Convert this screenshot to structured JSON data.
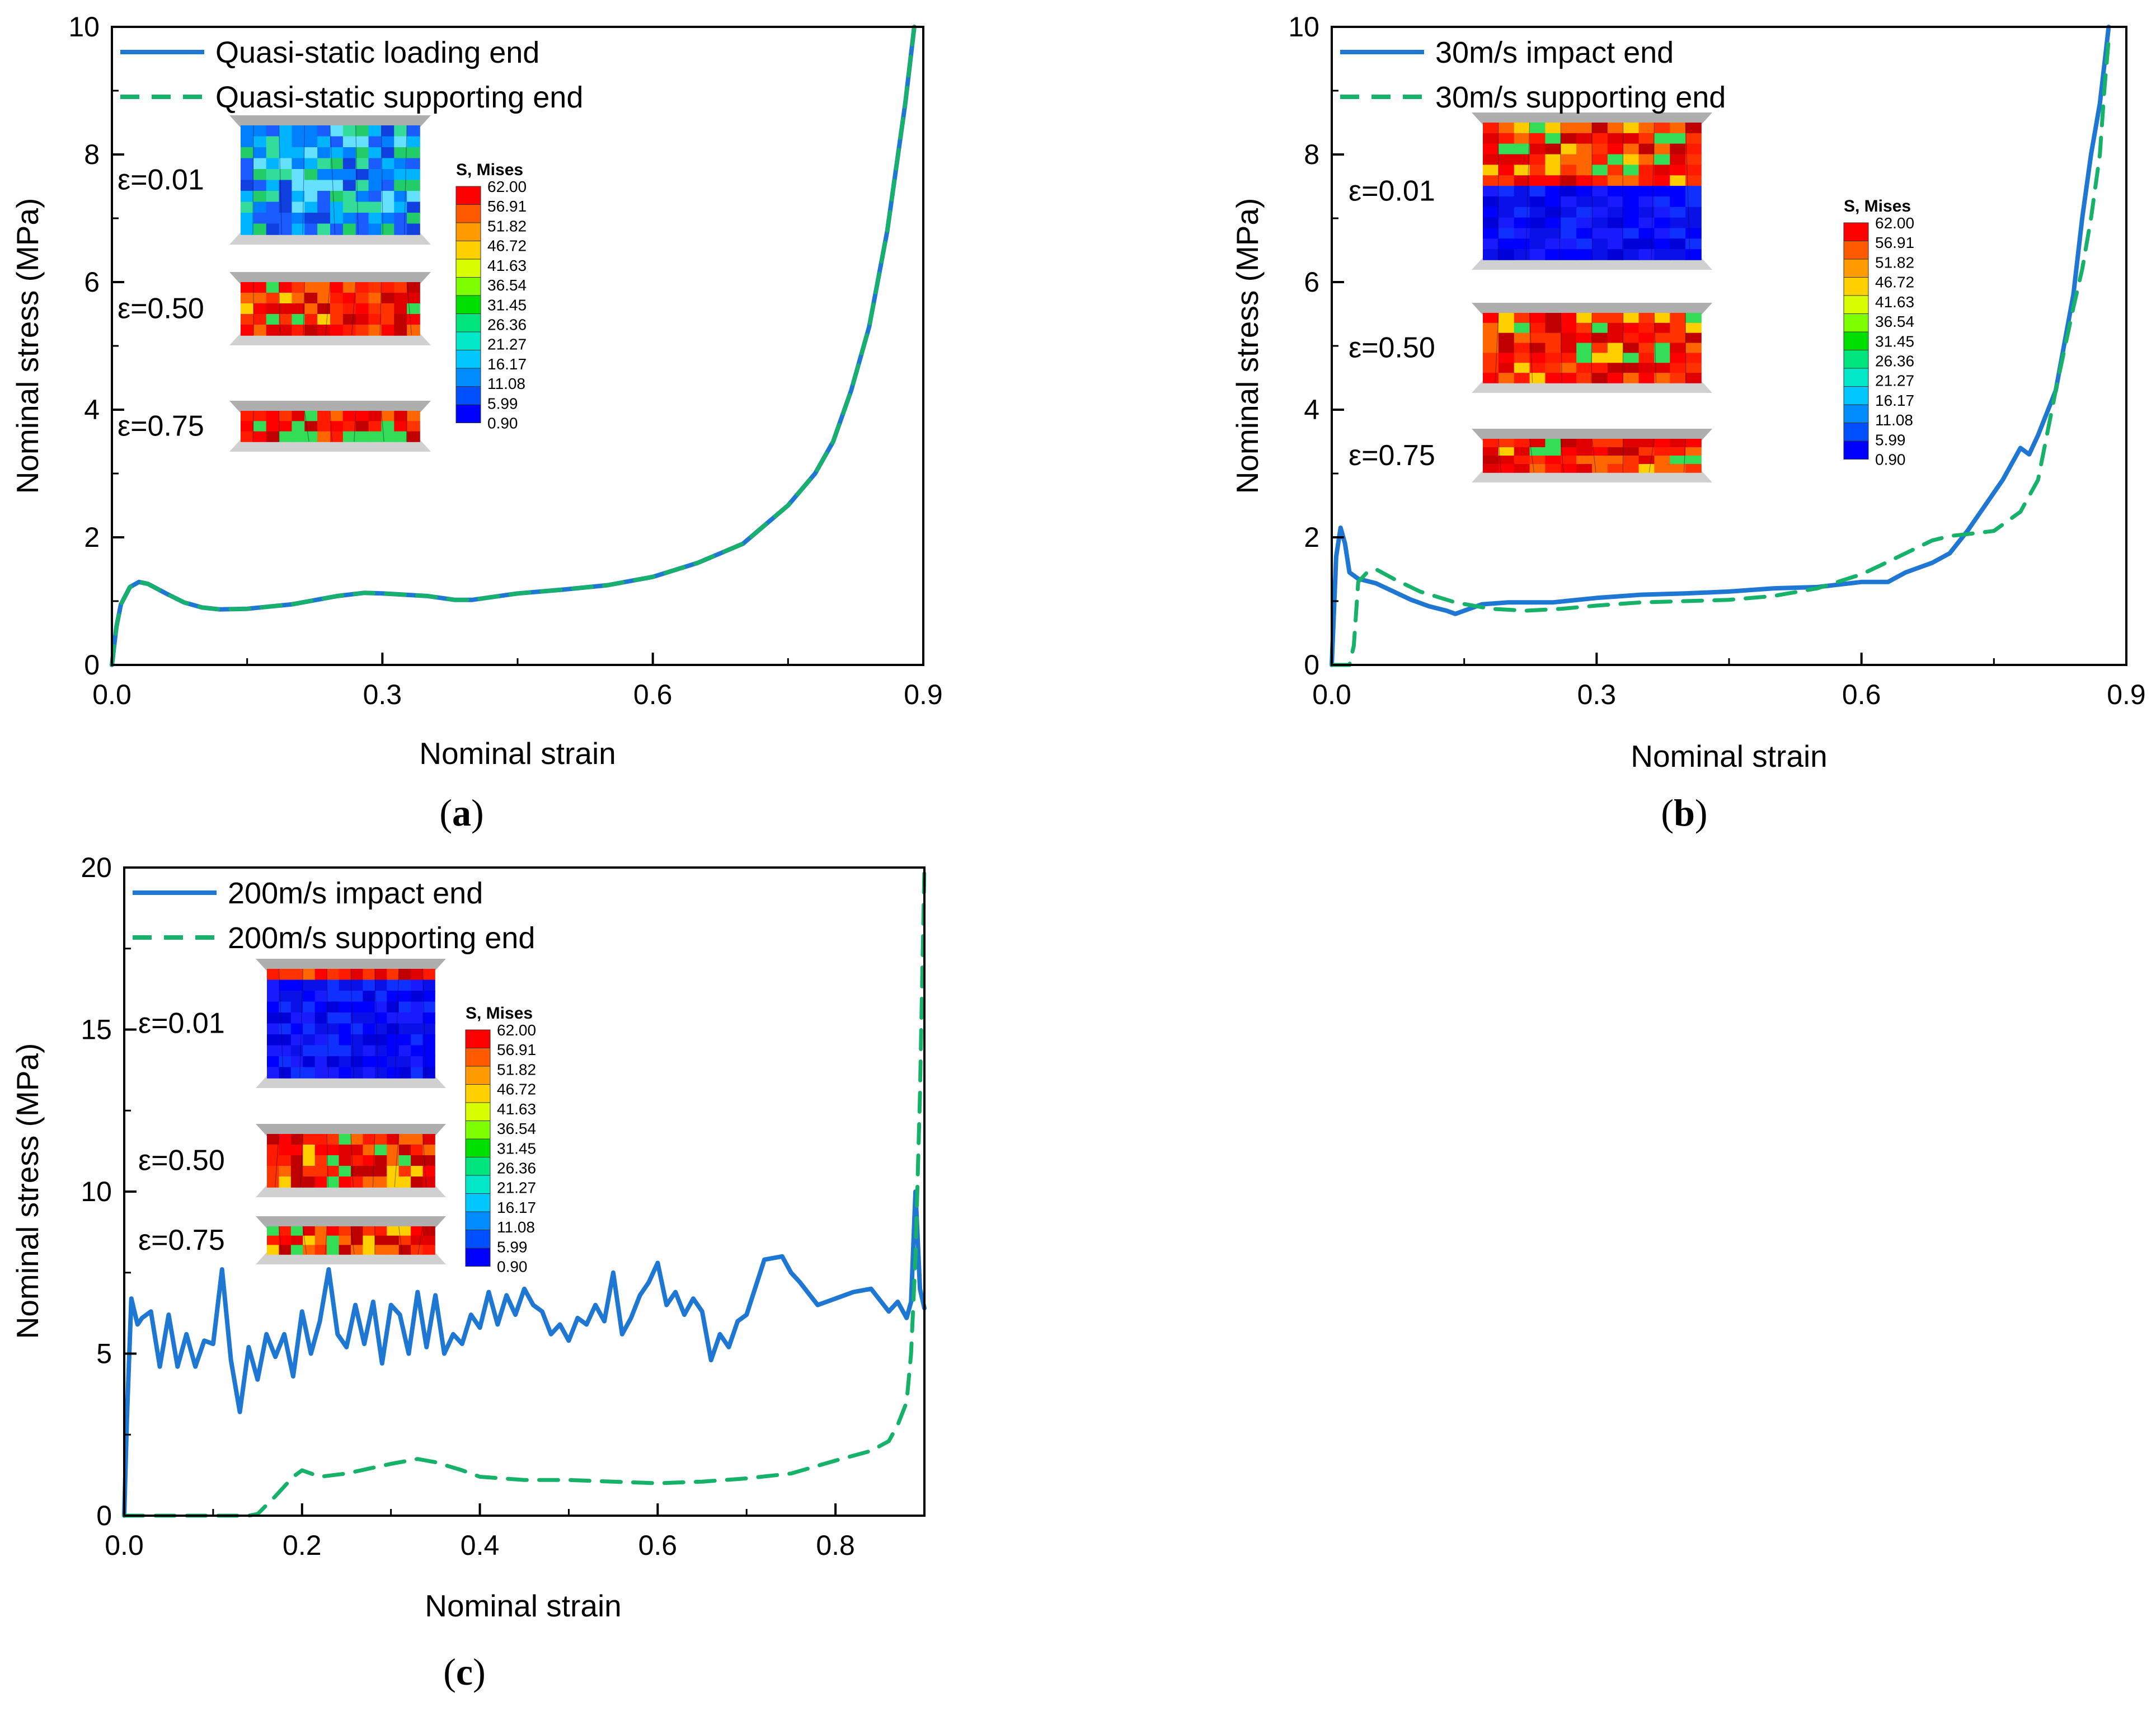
{
  "colors": {
    "impact": "#1f77d4",
    "support": "#17b26a",
    "axis": "#000000"
  },
  "colorbar": {
    "title": "S, Mises",
    "labels": [
      "62.00",
      "56.91",
      "51.82",
      "46.72",
      "41.63",
      "36.54",
      "31.45",
      "26.36",
      "21.27",
      "16.17",
      "11.08",
      "5.99",
      "0.90"
    ],
    "colors": [
      "#ff0000",
      "#ff5a00",
      "#ff9a00",
      "#ffd000",
      "#d8ff00",
      "#7dff00",
      "#00e000",
      "#00e47e",
      "#00e8c8",
      "#00c8ff",
      "#008cff",
      "#0050ff",
      "#0000ff"
    ]
  },
  "chart_data": [
    {
      "id": "a",
      "caption": "a",
      "type": "line",
      "xlabel": "Nominal strain",
      "ylabel": "Nominal stress (MPa)",
      "xlim": [
        0,
        0.9
      ],
      "ylim": [
        0,
        10
      ],
      "xticks": [
        "0.0",
        "0.3",
        "0.6",
        "0.9"
      ],
      "yticks": [
        "0",
        "2",
        "4",
        "6",
        "8",
        "10"
      ],
      "legend": "top-left",
      "insets": {
        "labels": [
          "ε=0.01",
          "ε=0.50",
          "ε=0.75"
        ],
        "style": [
          "mixed",
          "red",
          "red"
        ]
      },
      "series": [
        {
          "name": "Quasi-static loading end",
          "style": "solid",
          "color": "#1f77d4",
          "x": [
            0,
            0.005,
            0.01,
            0.02,
            0.03,
            0.04,
            0.06,
            0.08,
            0.1,
            0.12,
            0.15,
            0.2,
            0.25,
            0.28,
            0.3,
            0.35,
            0.38,
            0.4,
            0.45,
            0.5,
            0.55,
            0.6,
            0.65,
            0.7,
            0.75,
            0.78,
            0.8,
            0.82,
            0.84,
            0.86,
            0.87,
            0.88,
            0.89
          ],
          "y": [
            0,
            0.6,
            0.95,
            1.22,
            1.3,
            1.27,
            1.12,
            0.98,
            0.9,
            0.87,
            0.88,
            0.95,
            1.08,
            1.13,
            1.12,
            1.08,
            1.02,
            1.02,
            1.12,
            1.18,
            1.25,
            1.38,
            1.6,
            1.9,
            2.5,
            3.0,
            3.5,
            4.3,
            5.3,
            6.8,
            7.8,
            8.8,
            10.0
          ]
        },
        {
          "name": "Quasi-static supporting end",
          "style": "dashed",
          "color": "#17b26a",
          "x": [
            0,
            0.005,
            0.01,
            0.02,
            0.03,
            0.04,
            0.06,
            0.08,
            0.1,
            0.12,
            0.15,
            0.2,
            0.25,
            0.28,
            0.3,
            0.35,
            0.38,
            0.4,
            0.45,
            0.5,
            0.55,
            0.6,
            0.65,
            0.7,
            0.75,
            0.78,
            0.8,
            0.82,
            0.84,
            0.86,
            0.87,
            0.88,
            0.89
          ],
          "y": [
            0,
            0.6,
            0.95,
            1.22,
            1.3,
            1.27,
            1.12,
            0.98,
            0.9,
            0.87,
            0.88,
            0.95,
            1.08,
            1.13,
            1.12,
            1.08,
            1.02,
            1.02,
            1.12,
            1.18,
            1.25,
            1.38,
            1.6,
            1.9,
            2.5,
            3.0,
            3.5,
            4.3,
            5.3,
            6.8,
            7.8,
            8.8,
            10.0
          ]
        }
      ]
    },
    {
      "id": "b",
      "caption": "b",
      "type": "line",
      "xlabel": "Nominal strain",
      "ylabel": "Nominal stress (MPa)",
      "xlim": [
        0,
        0.9
      ],
      "ylim": [
        0,
        10
      ],
      "xticks": [
        "0.0",
        "0.3",
        "0.6",
        "0.9"
      ],
      "yticks": [
        "0",
        "2",
        "4",
        "6",
        "8",
        "10"
      ],
      "legend": "top-left",
      "insets": {
        "labels": [
          "ε=0.01",
          "ε=0.50",
          "ε=0.75"
        ],
        "style": [
          "half",
          "red",
          "red"
        ]
      },
      "series": [
        {
          "name": "30m/s impact end",
          "style": "solid",
          "color": "#1f77d4",
          "x": [
            0,
            0.005,
            0.01,
            0.015,
            0.02,
            0.03,
            0.05,
            0.07,
            0.09,
            0.11,
            0.13,
            0.14,
            0.15,
            0.17,
            0.2,
            0.25,
            0.3,
            0.35,
            0.4,
            0.45,
            0.5,
            0.55,
            0.6,
            0.63,
            0.65,
            0.68,
            0.7,
            0.72,
            0.74,
            0.76,
            0.78,
            0.79,
            0.8,
            0.82,
            0.84,
            0.85,
            0.86,
            0.87,
            0.875,
            0.88
          ],
          "y": [
            0,
            1.7,
            2.15,
            1.9,
            1.45,
            1.35,
            1.28,
            1.15,
            1.02,
            0.92,
            0.85,
            0.8,
            0.85,
            0.95,
            0.98,
            0.98,
            1.05,
            1.1,
            1.12,
            1.15,
            1.2,
            1.22,
            1.3,
            1.3,
            1.45,
            1.6,
            1.75,
            2.1,
            2.5,
            2.9,
            3.4,
            3.3,
            3.6,
            4.3,
            5.8,
            7.0,
            8.0,
            8.8,
            9.4,
            10.0
          ]
        },
        {
          "name": "30m/s supporting end",
          "style": "dashed",
          "color": "#17b26a",
          "x": [
            0,
            0.02,
            0.025,
            0.03,
            0.04,
            0.05,
            0.07,
            0.1,
            0.14,
            0.18,
            0.22,
            0.26,
            0.3,
            0.35,
            0.4,
            0.45,
            0.5,
            0.55,
            0.6,
            0.62,
            0.65,
            0.68,
            0.7,
            0.72,
            0.75,
            0.78,
            0.8,
            0.82,
            0.84,
            0.85,
            0.86,
            0.87,
            0.875,
            0.88
          ],
          "y": [
            0,
            0,
            0.3,
            1.3,
            1.45,
            1.5,
            1.35,
            1.15,
            0.98,
            0.88,
            0.85,
            0.88,
            0.93,
            0.98,
            1.0,
            1.02,
            1.08,
            1.2,
            1.42,
            1.55,
            1.75,
            1.95,
            2.02,
            2.05,
            2.1,
            2.4,
            2.9,
            4.3,
            5.6,
            6.2,
            7.0,
            8.0,
            9.0,
            9.8
          ]
        }
      ]
    },
    {
      "id": "c",
      "caption": "c",
      "type": "line",
      "xlabel": "Nominal strain",
      "ylabel": "Nominal stress (MPa)",
      "xlim": [
        0,
        0.9
      ],
      "ylim": [
        0,
        20
      ],
      "xticks": [
        "0.0",
        "0.2",
        "0.4",
        "0.6",
        "0.8"
      ],
      "xtickvals": [
        0,
        0.2,
        0.4,
        0.6,
        0.8
      ],
      "yticks": [
        "0",
        "5",
        "10",
        "15",
        "20"
      ],
      "legend": "top-left",
      "insets": {
        "labels": [
          "ε=0.01",
          "ε=0.50",
          "ε=0.75"
        ],
        "style": [
          "blue",
          "red",
          "red"
        ]
      },
      "series": [
        {
          "name": "200m/s impact end",
          "style": "solid",
          "color": "#1f77d4",
          "x": [
            0,
            0.003,
            0.008,
            0.015,
            0.02,
            0.03,
            0.04,
            0.05,
            0.06,
            0.07,
            0.08,
            0.09,
            0.1,
            0.11,
            0.12,
            0.13,
            0.14,
            0.15,
            0.16,
            0.17,
            0.18,
            0.19,
            0.2,
            0.21,
            0.22,
            0.23,
            0.24,
            0.25,
            0.26,
            0.27,
            0.28,
            0.29,
            0.3,
            0.31,
            0.32,
            0.33,
            0.34,
            0.35,
            0.36,
            0.37,
            0.38,
            0.39,
            0.4,
            0.41,
            0.42,
            0.43,
            0.44,
            0.45,
            0.46,
            0.47,
            0.48,
            0.49,
            0.5,
            0.51,
            0.52,
            0.53,
            0.54,
            0.55,
            0.56,
            0.57,
            0.58,
            0.59,
            0.6,
            0.61,
            0.62,
            0.63,
            0.64,
            0.65,
            0.66,
            0.67,
            0.68,
            0.69,
            0.7,
            0.72,
            0.74,
            0.75,
            0.76,
            0.78,
            0.8,
            0.82,
            0.84,
            0.86,
            0.87,
            0.88,
            0.885,
            0.89,
            0.895,
            0.9
          ],
          "y": [
            0,
            3.0,
            6.7,
            5.9,
            6.1,
            6.3,
            4.6,
            6.2,
            4.6,
            5.6,
            4.6,
            5.4,
            5.3,
            7.6,
            4.8,
            3.2,
            5.2,
            4.2,
            5.6,
            4.9,
            5.6,
            4.3,
            6.3,
            5.0,
            6.0,
            7.6,
            5.6,
            5.2,
            6.5,
            5.3,
            6.6,
            4.7,
            6.5,
            6.2,
            5.0,
            6.9,
            5.2,
            6.8,
            5.0,
            5.6,
            5.3,
            6.2,
            5.8,
            6.9,
            5.9,
            6.8,
            6.2,
            7.0,
            6.5,
            6.3,
            5.6,
            5.9,
            5.4,
            6.1,
            5.9,
            6.5,
            6.0,
            7.5,
            5.6,
            6.1,
            6.8,
            7.2,
            7.8,
            6.5,
            6.9,
            6.2,
            6.7,
            6.3,
            4.8,
            5.6,
            5.2,
            6.0,
            6.2,
            7.9,
            8.0,
            7.5,
            7.2,
            6.5,
            6.7,
            6.9,
            7.0,
            6.3,
            6.6,
            6.1,
            6.6,
            10.0,
            7.0,
            6.4
          ]
        },
        {
          "name": "200m/s supporting end",
          "style": "dashed",
          "color": "#17b26a",
          "x": [
            0,
            0.05,
            0.1,
            0.14,
            0.15,
            0.17,
            0.19,
            0.2,
            0.22,
            0.25,
            0.3,
            0.33,
            0.35,
            0.38,
            0.4,
            0.45,
            0.5,
            0.55,
            0.6,
            0.65,
            0.7,
            0.75,
            0.8,
            0.84,
            0.86,
            0.87,
            0.88,
            0.885,
            0.89,
            0.895,
            0.9
          ],
          "y": [
            0,
            0,
            0,
            0,
            0.05,
            0.6,
            1.2,
            1.4,
            1.2,
            1.3,
            1.6,
            1.75,
            1.65,
            1.4,
            1.2,
            1.1,
            1.1,
            1.05,
            1.0,
            1.05,
            1.15,
            1.3,
            1.7,
            2.0,
            2.3,
            2.8,
            3.5,
            5.0,
            8.0,
            13.0,
            20.0
          ]
        }
      ]
    }
  ]
}
